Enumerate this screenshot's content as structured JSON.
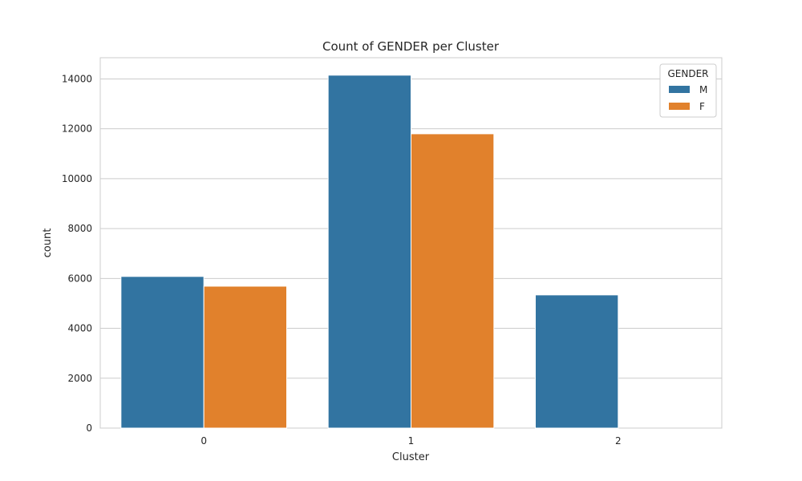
{
  "chart_data": {
    "type": "bar",
    "title": "Count of GENDER per Cluster",
    "xlabel": "Cluster",
    "ylabel": "count",
    "categories": [
      "0",
      "1",
      "2"
    ],
    "series": [
      {
        "name": "M",
        "values": [
          6080,
          14150,
          5340
        ]
      },
      {
        "name": "F",
        "values": [
          5690,
          11800,
          0
        ]
      }
    ],
    "ylim": [
      0,
      14850
    ],
    "yticks": [
      0,
      2000,
      4000,
      6000,
      8000,
      10000,
      12000,
      14000
    ],
    "ytick_labels": [
      "0",
      "2000",
      "4000",
      "6000",
      "8000",
      "10000",
      "12000",
      "14000"
    ],
    "grid": true,
    "legend": {
      "title": "GENDER",
      "position": "top-right"
    },
    "colors": {
      "M": "#3274a1",
      "F": "#e1812c"
    }
  }
}
